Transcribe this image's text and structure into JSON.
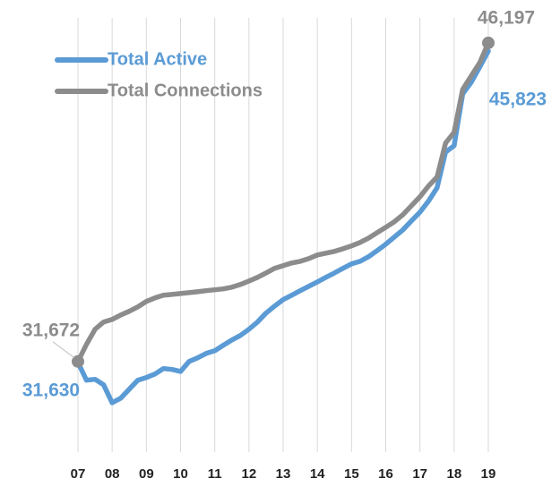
{
  "chart_data": {
    "type": "line",
    "x": [
      2007,
      2007.25,
      2007.5,
      2007.75,
      2008,
      2008.25,
      2008.5,
      2008.75,
      2009,
      2009.25,
      2009.5,
      2009.75,
      2010,
      2010.25,
      2010.5,
      2010.75,
      2011,
      2011.25,
      2011.5,
      2011.75,
      2012,
      2012.25,
      2012.5,
      2012.75,
      2013,
      2013.25,
      2013.5,
      2013.75,
      2014,
      2014.25,
      2014.5,
      2014.75,
      2015,
      2015.25,
      2015.5,
      2015.75,
      2016,
      2016.25,
      2016.5,
      2016.75,
      2017,
      2017.25,
      2017.5,
      2017.75,
      2018,
      2018.25,
      2018.5,
      2018.75,
      2019
    ],
    "series": [
      {
        "name": "Total Active",
        "color": "#5b9bd5",
        "values": [
          31630,
          30820,
          30860,
          30610,
          29790,
          30000,
          30410,
          30820,
          30940,
          31100,
          31350,
          31310,
          31220,
          31670,
          31840,
          32040,
          32160,
          32410,
          32650,
          32860,
          33140,
          33470,
          33880,
          34200,
          34490,
          34690,
          34900,
          35100,
          35300,
          35510,
          35710,
          35920,
          36120,
          36240,
          36450,
          36730,
          37020,
          37340,
          37670,
          38080,
          38480,
          38980,
          39590,
          41220,
          41510,
          43870,
          44400,
          45100,
          45823
        ],
        "value_labels": [
          "31,630",
          null,
          null,
          null,
          null,
          null,
          null,
          null,
          null,
          null,
          null,
          null,
          null,
          null,
          null,
          null,
          null,
          null,
          null,
          null,
          null,
          null,
          null,
          null,
          null,
          null,
          null,
          null,
          null,
          null,
          null,
          null,
          null,
          null,
          null,
          null,
          null,
          null,
          null,
          null,
          null,
          null,
          null,
          null,
          null,
          null,
          null,
          null,
          "45,823"
        ]
      },
      {
        "name": "Total Connections",
        "color": "#8c8c8c",
        "values": [
          31672,
          32450,
          33140,
          33470,
          33590,
          33790,
          33960,
          34160,
          34410,
          34570,
          34690,
          34730,
          34770,
          34810,
          34850,
          34900,
          34940,
          34980,
          35060,
          35180,
          35340,
          35510,
          35710,
          35920,
          36040,
          36160,
          36240,
          36360,
          36530,
          36610,
          36690,
          36810,
          36940,
          37100,
          37300,
          37550,
          37790,
          38040,
          38360,
          38770,
          39180,
          39670,
          40080,
          41630,
          42120,
          44080,
          44690,
          45300,
          46197
        ],
        "value_labels": [
          "31,672",
          null,
          null,
          null,
          null,
          null,
          null,
          null,
          null,
          null,
          null,
          null,
          null,
          null,
          null,
          null,
          null,
          null,
          null,
          null,
          null,
          null,
          null,
          null,
          null,
          null,
          null,
          null,
          null,
          null,
          null,
          null,
          null,
          null,
          null,
          null,
          null,
          null,
          null,
          null,
          null,
          null,
          null,
          null,
          null,
          null,
          null,
          null,
          "46,197"
        ]
      }
    ],
    "xlim": [
      2007,
      2019
    ],
    "xticks": [
      {
        "value": 2007,
        "label": "07"
      },
      {
        "value": 2008,
        "label": "08"
      },
      {
        "value": 2009,
        "label": "09"
      },
      {
        "value": 2010,
        "label": "10"
      },
      {
        "value": 2011,
        "label": "11"
      },
      {
        "value": 2012,
        "label": "12"
      },
      {
        "value": 2013,
        "label": "13"
      },
      {
        "value": 2014,
        "label": "14"
      },
      {
        "value": 2015,
        "label": "15"
      },
      {
        "value": 2016,
        "label": "16"
      },
      {
        "value": 2017,
        "label": "17"
      },
      {
        "value": 2018,
        "label": "18"
      },
      {
        "value": 2019,
        "label": "19"
      }
    ],
    "ylim": [
      27500,
      47500
    ],
    "grid": true,
    "legend": "top-left"
  }
}
